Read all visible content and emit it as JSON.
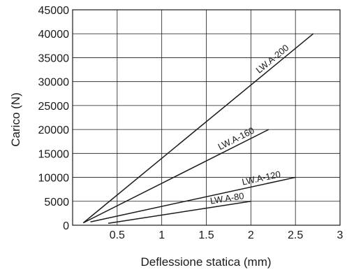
{
  "chart_data": {
    "type": "line",
    "title": "",
    "xlabel": "Deflessione statica (mm)",
    "ylabel": "Carico (N)",
    "xlim": [
      0,
      3
    ],
    "ylim": [
      0,
      45000
    ],
    "grid": true,
    "x_ticks": [
      {
        "value": 0.5,
        "label": "0.5"
      },
      {
        "value": 1,
        "label": "1"
      },
      {
        "value": 1.5,
        "label": "1.5"
      },
      {
        "value": 2,
        "label": "2"
      },
      {
        "value": 2.5,
        "label": "2.5"
      },
      {
        "value": 3,
        "label": "3"
      }
    ],
    "y_ticks": [
      {
        "value": 0,
        "label": "0"
      },
      {
        "value": 5000,
        "label": "5000"
      },
      {
        "value": 10000,
        "label": "10000"
      },
      {
        "value": 15000,
        "label": "15000"
      },
      {
        "value": 20000,
        "label": "20000"
      },
      {
        "value": 25000,
        "label": "25000"
      },
      {
        "value": 30000,
        "label": "30000"
      },
      {
        "value": 35000,
        "label": "35000"
      },
      {
        "value": 40000,
        "label": "40000"
      },
      {
        "value": 45000,
        "label": "45000"
      }
    ],
    "series": [
      {
        "name": "LW.A-200",
        "x": [
          0.12,
          2.7
        ],
        "y": [
          500,
          40000
        ]
      },
      {
        "name": "LW.A-160",
        "x": [
          0.12,
          2.2
        ],
        "y": [
          500,
          20000
        ]
      },
      {
        "name": "LW.A-120",
        "x": [
          0.2,
          2.5
        ],
        "y": [
          700,
          10000
        ]
      },
      {
        "name": "LW.A-80",
        "x": [
          0.4,
          2.0
        ],
        "y": [
          400,
          5000
        ]
      }
    ]
  }
}
